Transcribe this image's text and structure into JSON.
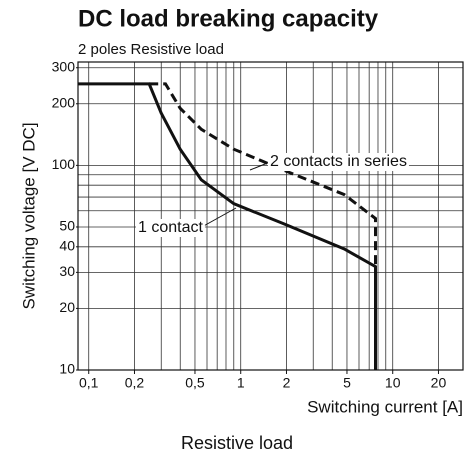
{
  "chart_data": {
    "type": "line",
    "title": "DC load breaking capacity",
    "subtitle": "2 poles Resistive load",
    "x_label": "Switching current [A]",
    "y_label": "Switching voltage [V DC]",
    "caption": "Resistive load",
    "log_x": true,
    "log_y": true,
    "grid": true,
    "xlim": [
      0.085,
      29
    ],
    "ylim": [
      10,
      320
    ],
    "xticks": [
      {
        "value": 0.1,
        "label": "0,1"
      },
      {
        "value": 0.2,
        "label": "0,2"
      },
      {
        "value": 0.5,
        "label": "0,5"
      },
      1,
      2,
      5,
      10,
      20
    ],
    "yticks": [
      10,
      20,
      30,
      40,
      50,
      100,
      200,
      300
    ],
    "x_grid": [
      0.1,
      0.2,
      0.3,
      0.4,
      0.5,
      0.6,
      0.7,
      0.8,
      0.9,
      1,
      2,
      3,
      4,
      5,
      6,
      7,
      8,
      9,
      10,
      20
    ],
    "y_grid": [
      10,
      20,
      30,
      40,
      50,
      60,
      70,
      80,
      90,
      100,
      200,
      300
    ],
    "series": [
      {
        "name": "1 contact",
        "color": "#111111",
        "dash": false,
        "x": [
          0.085,
          0.25,
          0.3,
          0.4,
          0.55,
          0.9,
          1.9,
          4.8,
          7.7,
          7.7
        ],
        "values": [
          250,
          250,
          180,
          120,
          85,
          65,
          52,
          39,
          32,
          10
        ]
      },
      {
        "name": "2 contacts in series",
        "color": "#111111",
        "dash": true,
        "x": [
          0.25,
          0.32,
          0.4,
          0.55,
          0.9,
          1.9,
          4.8,
          7.7,
          7.7
        ],
        "values": [
          250,
          250,
          190,
          150,
          120,
          95,
          72,
          55,
          32
        ]
      }
    ]
  }
}
